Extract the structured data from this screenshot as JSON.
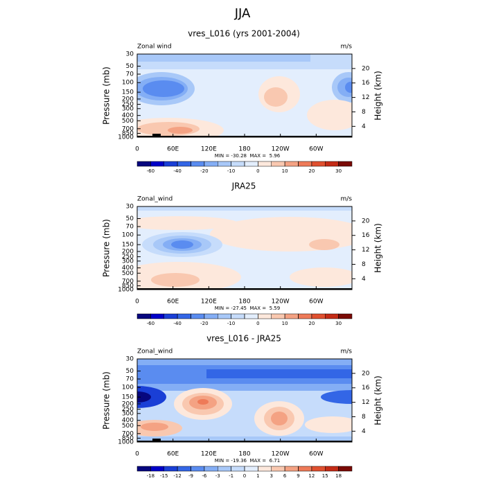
{
  "title": "JJA",
  "chart_data": [
    {
      "type": "contour",
      "title": "vres_L016 (yrs 2001-2004)",
      "left_label": "Zonal wind",
      "right_label": "m/s",
      "ylabel": "Pressure (mb)",
      "y2label": "Height (km)",
      "ylog": true,
      "ylim": [
        1000,
        30
      ],
      "yticks": [
        30,
        50,
        70,
        100,
        150,
        200,
        250,
        300,
        400,
        500,
        700,
        850,
        1000
      ],
      "y2lim": [
        1,
        24
      ],
      "y2ticks": [
        4,
        8,
        12,
        16,
        20
      ],
      "xlim": [
        0,
        360
      ],
      "xticks": [
        0,
        {
          "value": 60,
          "label": "60E"
        },
        {
          "value": 120,
          "label": "120E"
        },
        180,
        {
          "value": 240,
          "label": "120W"
        },
        {
          "value": 300,
          "label": "60W"
        }
      ],
      "stats": "MIN = -30.28  MAX =  5.96",
      "colorbar": {
        "levels": [
          -60,
          -50,
          -40,
          -30,
          -20,
          -15,
          -10,
          -5,
          0,
          5,
          10,
          15,
          20,
          25,
          30
        ],
        "ticks": [
          -60,
          -40,
          -20,
          -10,
          0,
          10,
          20,
          30
        ],
        "colors": [
          "#07077e",
          "#0000c8",
          "#1a3fd6",
          "#3366e6",
          "#5a8cf0",
          "#84aef5",
          "#a8c8f8",
          "#c6dcfb",
          "#e3eefd",
          "#fde8dc",
          "#f9c8b0",
          "#f4a283",
          "#ee7a58",
          "#e0502f",
          "#c42b16",
          "#7a0a05"
        ]
      }
    },
    {
      "type": "contour",
      "title": "JRA25",
      "left_label": "Zonal_wind",
      "right_label": "m/s",
      "ylabel": "Pressure (mb)",
      "y2label": "Height (km)",
      "ylog": true,
      "ylim": [
        1000,
        30
      ],
      "yticks": [
        30,
        50,
        70,
        100,
        150,
        200,
        250,
        300,
        400,
        500,
        700,
        850,
        1000
      ],
      "y2lim": [
        1,
        24
      ],
      "y2ticks": [
        4,
        8,
        12,
        16,
        20
      ],
      "xlim": [
        0,
        360
      ],
      "xticks": [
        0,
        {
          "value": 60,
          "label": "60E"
        },
        {
          "value": 120,
          "label": "120E"
        },
        180,
        {
          "value": 240,
          "label": "120W"
        },
        {
          "value": 300,
          "label": "60W"
        }
      ],
      "stats": "MIN = -27.45  MAX =  5.59",
      "colorbar": {
        "levels": [
          -60,
          -50,
          -40,
          -30,
          -20,
          -15,
          -10,
          -5,
          0,
          5,
          10,
          15,
          20,
          25,
          30
        ],
        "ticks": [
          -60,
          -40,
          -20,
          -10,
          0,
          10,
          20,
          30
        ],
        "colors": [
          "#07077e",
          "#0000c8",
          "#1a3fd6",
          "#3366e6",
          "#5a8cf0",
          "#84aef5",
          "#a8c8f8",
          "#c6dcfb",
          "#e3eefd",
          "#fde8dc",
          "#f9c8b0",
          "#f4a283",
          "#ee7a58",
          "#e0502f",
          "#c42b16",
          "#7a0a05"
        ]
      }
    },
    {
      "type": "contour",
      "title": "vres_L016 - JRA25",
      "left_label": "Zonal_wind",
      "right_label": "m/s",
      "ylabel": "Pressure (mb)",
      "y2label": "Height (km)",
      "ylog": true,
      "ylim": [
        1000,
        30
      ],
      "yticks": [
        30,
        50,
        70,
        100,
        150,
        200,
        250,
        300,
        400,
        500,
        700,
        850,
        1000
      ],
      "y2lim": [
        1,
        24
      ],
      "y2ticks": [
        4,
        8,
        12,
        16,
        20
      ],
      "xlim": [
        0,
        360
      ],
      "xticks": [
        0,
        {
          "value": 60,
          "label": "60E"
        },
        {
          "value": 120,
          "label": "120E"
        },
        180,
        {
          "value": 240,
          "label": "120W"
        },
        {
          "value": 300,
          "label": "60W"
        }
      ],
      "stats": "MIN = -19.36  MAX =  6.71",
      "colorbar": {
        "levels": [
          -18,
          -15,
          -12,
          -9,
          -6,
          -3,
          -1,
          0,
          1,
          3,
          6,
          9,
          12,
          15,
          18
        ],
        "colors": [
          "#07077e",
          "#0000c8",
          "#1a3fd6",
          "#3366e6",
          "#5a8cf0",
          "#84aef5",
          "#a8c8f8",
          "#c6dcfb",
          "#e3eefd",
          "#fde8dc",
          "#f9c8b0",
          "#f4a283",
          "#ee7a58",
          "#e0502f",
          "#c42b16",
          "#7a0a05"
        ]
      }
    }
  ]
}
